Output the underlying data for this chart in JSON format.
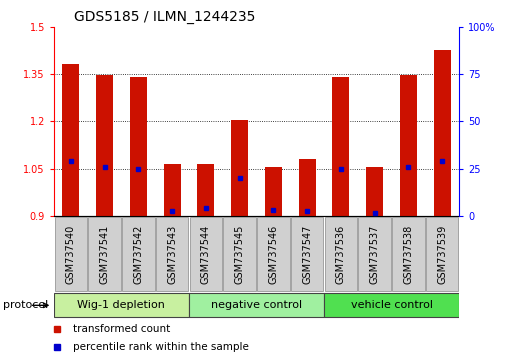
{
  "title": "GDS5185 / ILMN_1244235",
  "samples": [
    "GSM737540",
    "GSM737541",
    "GSM737542",
    "GSM737543",
    "GSM737544",
    "GSM737545",
    "GSM737546",
    "GSM737547",
    "GSM737536",
    "GSM737537",
    "GSM737538",
    "GSM737539"
  ],
  "red_heights": [
    1.38,
    1.345,
    1.34,
    1.065,
    1.065,
    1.205,
    1.055,
    1.08,
    1.34,
    1.055,
    1.345,
    1.425
  ],
  "blue_positions": [
    1.075,
    1.055,
    1.05,
    0.915,
    0.925,
    1.02,
    0.92,
    0.915,
    1.05,
    0.91,
    1.055,
    1.075
  ],
  "baseline": 0.9,
  "ylim_left": [
    0.9,
    1.5
  ],
  "ylim_right": [
    0,
    100
  ],
  "yticks_left": [
    0.9,
    1.05,
    1.2,
    1.35,
    1.5
  ],
  "yticks_right": [
    0,
    25,
    50,
    75,
    100
  ],
  "ytick_labels_left": [
    "0.9",
    "1.05",
    "1.2",
    "1.35",
    "1.5"
  ],
  "ytick_labels_right": [
    "0",
    "25",
    "50",
    "75",
    "100%"
  ],
  "dotted_lines": [
    1.05,
    1.2,
    1.35
  ],
  "groups": [
    {
      "label": "Wig-1 depletion",
      "start": 0,
      "end": 4,
      "color": "#c8f0a0"
    },
    {
      "label": "negative control",
      "start": 4,
      "end": 8,
      "color": "#a0f0a0"
    },
    {
      "label": "vehicle control",
      "start": 8,
      "end": 12,
      "color": "#50e050"
    }
  ],
  "bar_color": "#cc1100",
  "blue_color": "#0000cc",
  "bar_width": 0.5,
  "protocol_label": "protocol",
  "legend_red": "transformed count",
  "legend_blue": "percentile rank within the sample",
  "title_fontsize": 10,
  "tick_fontsize": 7,
  "group_label_fontsize": 8,
  "legend_fontsize": 7.5,
  "sample_box_color": "#d0d0d0",
  "sample_box_edge": "#888888"
}
